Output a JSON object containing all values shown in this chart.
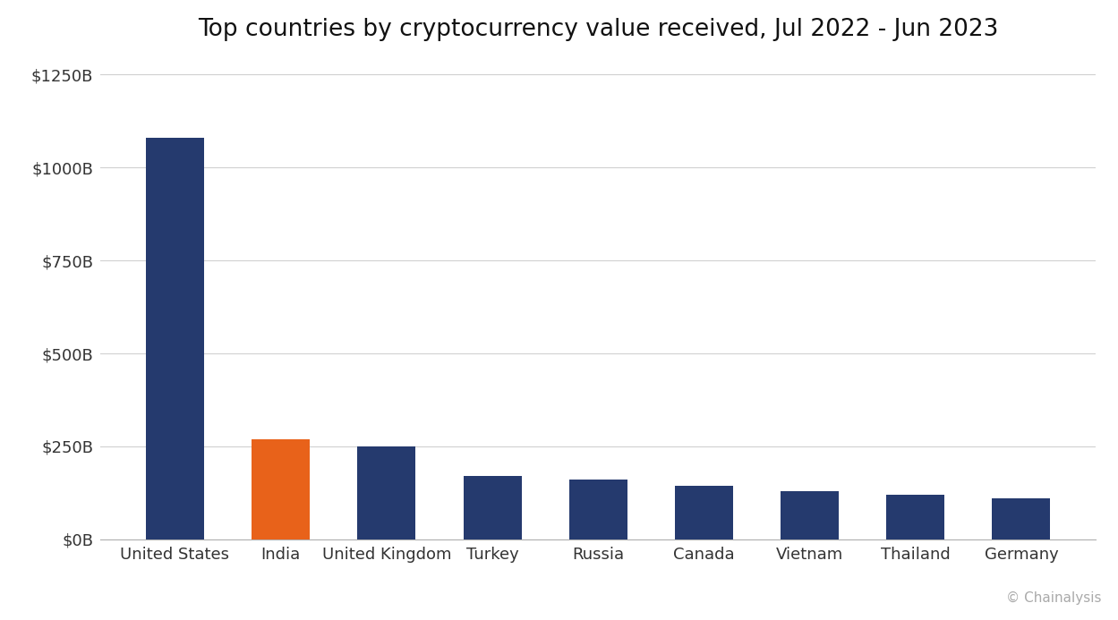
{
  "title": "Top countries by cryptocurrency value received, Jul 2022 - Jun 2023",
  "categories": [
    "United States",
    "India",
    "United Kingdom",
    "Turkey",
    "Russia",
    "Canada",
    "Vietnam",
    "Thailand",
    "Germany"
  ],
  "values": [
    1080,
    270,
    250,
    170,
    160,
    145,
    130,
    120,
    110
  ],
  "bar_colors": [
    "#253a6e",
    "#e8621a",
    "#253a6e",
    "#253a6e",
    "#253a6e",
    "#253a6e",
    "#253a6e",
    "#253a6e",
    "#253a6e"
  ],
  "yticks": [
    0,
    250,
    500,
    750,
    1000,
    1250
  ],
  "ytick_labels": [
    "$0B",
    "$250B",
    "$500B",
    "$750B",
    "$1000B",
    "$1250B"
  ],
  "ylim": [
    0,
    1300
  ],
  "background_color": "#ffffff",
  "title_fontsize": 19,
  "tick_fontsize": 13,
  "grid_color": "#d0d0d0",
  "watermark": "© Chainalysis",
  "bar_width": 0.55
}
